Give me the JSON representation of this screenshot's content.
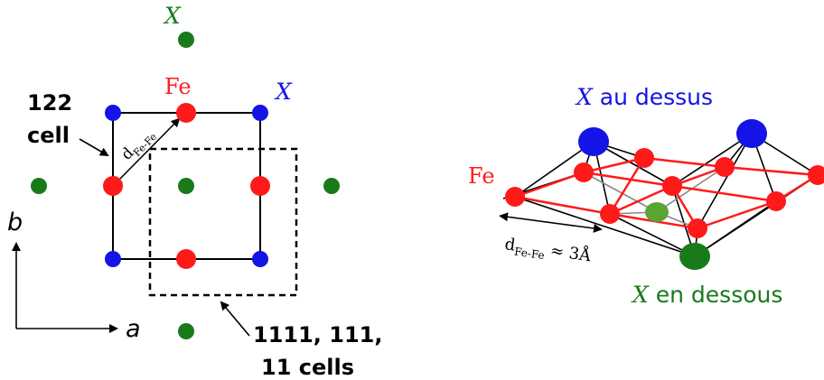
{
  "left_panel": {
    "label_122": "122",
    "label_cell": "cell",
    "d_main": "d",
    "d_sub": "Fe-Fe",
    "fe_label": "Fe",
    "x_label_blue": "X",
    "x_label_green": "X",
    "axis_b": "b",
    "axis_a": "a",
    "cells_line1": "1111, 111,",
    "cells_line2": "11 cells"
  },
  "right_panel": {
    "x_top_symbol": "X",
    "x_top_text": " au dessus",
    "fe_label": "Fe",
    "d_main": "d",
    "d_sub": "Fe-Fe",
    "d_value": " ≈ 3Å",
    "x_bottom_symbol": "X",
    "x_bottom_text": " en dessous"
  },
  "colors": {
    "fe": "#ff1a1a",
    "x_blue": "#1414e6",
    "x_green": "#1a7a1a",
    "x_green_light": "#5aa532",
    "bond_black": "#000000",
    "fe_fe_bond": "#ff1a1a"
  }
}
